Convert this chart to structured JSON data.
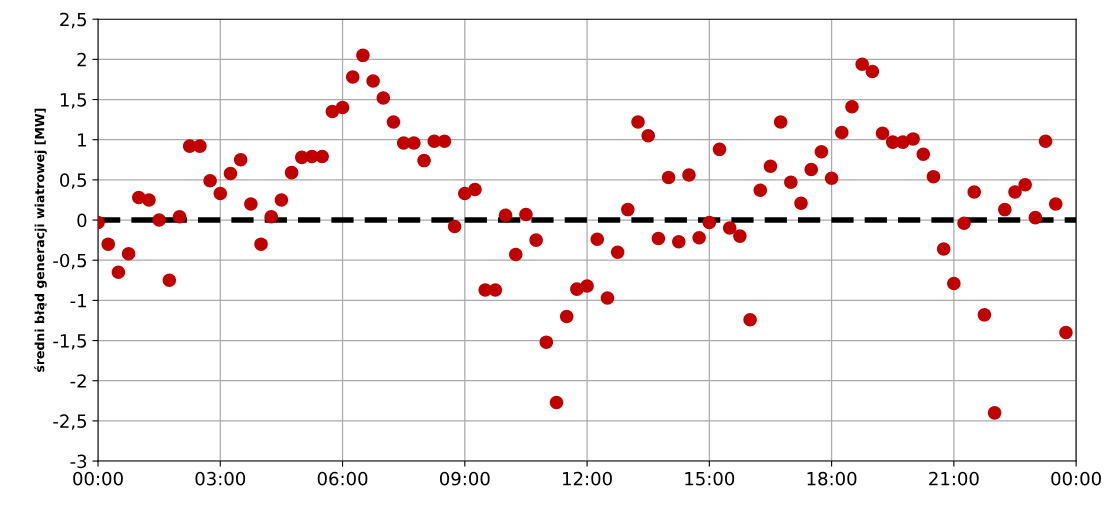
{
  "chart_data": {
    "type": "scatter",
    "ylabel": "średni błąd generacji wiatrowej [MW]",
    "x": [
      0,
      0.25,
      0.5,
      0.75,
      1,
      1.25,
      1.5,
      1.75,
      2,
      2.25,
      2.5,
      2.75,
      3,
      3.25,
      3.5,
      3.75,
      4,
      4.25,
      4.5,
      4.75,
      5,
      5.25,
      5.5,
      5.75,
      6,
      6.25,
      6.5,
      6.75,
      7,
      7.25,
      7.5,
      7.75,
      8,
      8.25,
      8.5,
      8.75,
      9,
      9.25,
      9.5,
      9.75,
      10,
      10.25,
      10.5,
      10.75,
      11,
      11.25,
      11.5,
      11.75,
      12,
      12.25,
      12.5,
      12.75,
      13,
      13.25,
      13.5,
      13.75,
      14,
      14.25,
      14.5,
      14.75,
      15,
      15.25,
      15.5,
      15.75,
      16,
      16.25,
      16.5,
      16.75,
      17,
      17.25,
      17.5,
      17.75,
      18,
      18.25,
      18.5,
      18.75,
      19,
      19.25,
      19.5,
      19.75,
      20,
      20.25,
      20.5,
      20.75,
      21,
      21.25,
      21.5,
      21.75,
      22,
      22.25,
      22.5,
      22.75,
      23,
      23.25,
      23.5,
      23.75
    ],
    "series": [
      {
        "color": "#c00000",
        "values": [
          -0.03,
          -0.3,
          -0.65,
          -0.42,
          0.28,
          0.25,
          0.0,
          -0.75,
          0.04,
          0.92,
          0.92,
          0.49,
          0.33,
          0.58,
          0.75,
          0.2,
          -0.3,
          0.04,
          0.25,
          0.59,
          0.78,
          0.79,
          0.79,
          1.35,
          1.4,
          1.78,
          2.05,
          1.73,
          1.52,
          1.22,
          0.96,
          0.96,
          0.74,
          0.98,
          0.98,
          -0.08,
          0.33,
          0.38,
          -0.87,
          -0.87,
          0.06,
          -0.43,
          0.07,
          -0.25,
          -1.52,
          -2.27,
          -1.2,
          -0.86,
          -0.82,
          -0.24,
          -0.97,
          -0.4,
          0.13,
          1.22,
          1.05,
          -0.23,
          0.53,
          -0.27,
          0.56,
          -0.22,
          -0.03,
          0.88,
          -0.1,
          -0.2,
          -1.24,
          0.37,
          0.67,
          1.22,
          0.47,
          0.21,
          0.63,
          0.85,
          0.52,
          1.09,
          1.41,
          1.94,
          1.85,
          1.08,
          0.97,
          0.97,
          1.01,
          0.82,
          0.54,
          -0.36,
          -0.79,
          -0.04,
          0.35,
          -1.18,
          -2.4,
          0.13,
          0.35,
          0.44,
          0.03,
          0.98,
          0.2,
          -1.4
        ]
      }
    ],
    "xlim": [
      0,
      24
    ],
    "xticks": [
      {
        "value": 0,
        "label": "00:00"
      },
      {
        "value": 3,
        "label": "03:00"
      },
      {
        "value": 6,
        "label": "06:00"
      },
      {
        "value": 9,
        "label": "09:00"
      },
      {
        "value": 12,
        "label": "12:00"
      },
      {
        "value": 15,
        "label": "15:00"
      },
      {
        "value": 18,
        "label": "18:00"
      },
      {
        "value": 21,
        "label": "21:00"
      },
      {
        "value": 24,
        "label": "00:00"
      }
    ],
    "ylim": [
      -3,
      2.5
    ],
    "yticks": [
      {
        "value": -3,
        "label": "-3"
      },
      {
        "value": -2.5,
        "label": "-2,5"
      },
      {
        "value": -2,
        "label": "-2"
      },
      {
        "value": -1.5,
        "label": "-1,5"
      },
      {
        "value": -1,
        "label": "-1"
      },
      {
        "value": -0.5,
        "label": "-0,5"
      },
      {
        "value": 0,
        "label": "0"
      },
      {
        "value": 0.5,
        "label": "0,5"
      },
      {
        "value": 1,
        "label": "1"
      },
      {
        "value": 1.5,
        "label": "1,5"
      },
      {
        "value": 2,
        "label": "2"
      },
      {
        "value": 2.5,
        "label": "2,5"
      }
    ],
    "ref_lines": [
      {
        "axis": "y",
        "value": 0,
        "color": "#000000",
        "line_style": "dashed"
      }
    ],
    "grid": true,
    "marker": "circle"
  }
}
